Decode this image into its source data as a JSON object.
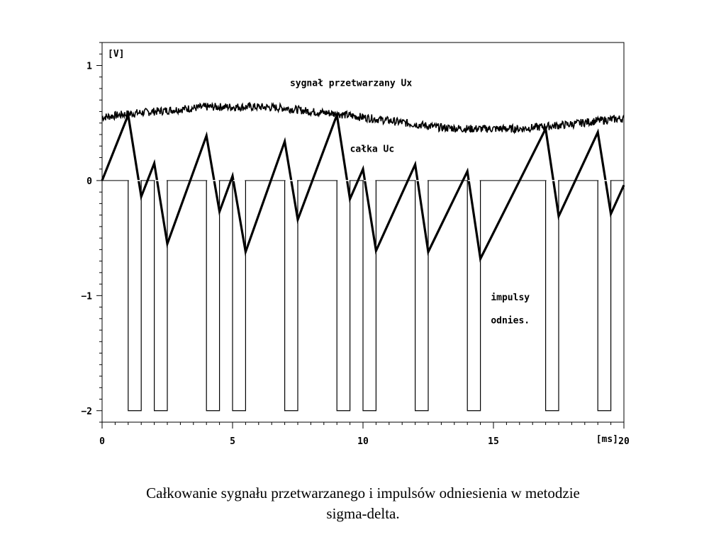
{
  "caption": {
    "line1": "Całkowanie sygnału przetwarzanego i impulsów odniesienia w metodzie",
    "line2": "sigma-delta."
  },
  "chart_data": {
    "type": "line",
    "title": "",
    "xlabel": "[ms]",
    "ylabel": "[V]",
    "xlim": [
      0,
      20
    ],
    "ylim": [
      -2.1,
      1.2
    ],
    "x_ticks": [
      0,
      5,
      10,
      15,
      20
    ],
    "y_ticks": [
      1,
      0,
      -1,
      -2
    ],
    "x_tick_labels": [
      "0",
      "5",
      "10",
      "15",
      "20"
    ],
    "y_tick_labels": [
      "1",
      "0",
      "−1",
      "−2"
    ],
    "grid": false,
    "annotations": [
      {
        "text": "sygnał przetwarzany Ux",
        "x": 7.2,
        "y": 0.82
      },
      {
        "text": "całka Uc",
        "x": 9.5,
        "y": 0.25
      },
      {
        "text": "impulsy",
        "x": 14.9,
        "y": -1.04
      },
      {
        "text": "odnies.",
        "x": 14.9,
        "y": -1.24
      }
    ],
    "series": [
      {
        "name": "sygnał przetwarzany Ux",
        "kind": "noisy-sine",
        "x": [
          0,
          1,
          2,
          3,
          4,
          5,
          6,
          7,
          8,
          9,
          10,
          11,
          12,
          13,
          14,
          15,
          16,
          17,
          18,
          19,
          20
        ],
        "values": [
          0.55,
          0.58,
          0.6,
          0.62,
          0.64,
          0.64,
          0.64,
          0.63,
          0.6,
          0.58,
          0.55,
          0.52,
          0.49,
          0.46,
          0.45,
          0.45,
          0.45,
          0.47,
          0.49,
          0.52,
          0.54
        ],
        "color": "#000000"
      },
      {
        "name": "całka Uc",
        "kind": "sawtooth",
        "x": [
          0,
          1,
          1.5,
          2,
          2.5,
          4,
          4.5,
          5,
          5.5,
          7,
          7.5,
          9,
          9.5,
          10,
          10.5,
          12,
          12.5,
          14,
          14.5,
          17,
          17.5,
          19,
          19.5,
          20
        ],
        "values": [
          0,
          0.57,
          -0.14,
          0.15,
          -0.55,
          0.39,
          -0.27,
          0.04,
          -0.62,
          0.34,
          -0.34,
          0.57,
          -0.16,
          0.1,
          -0.61,
          0.14,
          -0.62,
          0.08,
          -0.68,
          0.45,
          -0.31,
          0.42,
          -0.29,
          -0.04
        ],
        "color": "#000000"
      },
      {
        "name": "impulsy odnies.",
        "kind": "pulses",
        "pulses": [
          [
            1,
            1.5
          ],
          [
            2,
            2.5
          ],
          [
            4,
            4.5
          ],
          [
            5,
            5.5
          ],
          [
            7,
            7.5
          ],
          [
            9,
            9.5
          ],
          [
            10,
            10.5
          ],
          [
            12,
            12.5
          ],
          [
            14,
            14.5
          ],
          [
            17,
            17.5
          ],
          [
            19,
            19.5
          ]
        ],
        "low": -2,
        "high": 0,
        "color": "#000000"
      }
    ]
  }
}
